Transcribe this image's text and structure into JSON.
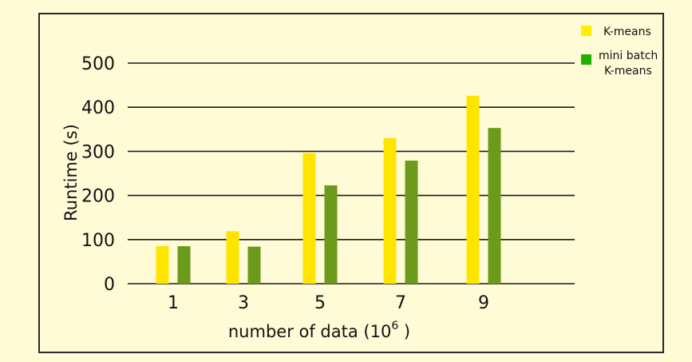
{
  "chart_data": {
    "type": "bar",
    "categories": [
      "1",
      "3",
      "5",
      "7",
      "9"
    ],
    "series": [
      {
        "name": "K-means",
        "values": [
          85,
          119,
          296,
          330,
          426
        ],
        "color": "#ffe400"
      },
      {
        "name": "mini batch K-means",
        "name_lines": [
          "mini batch",
          "K-means"
        ],
        "values": [
          85,
          84,
          223,
          279,
          353
        ],
        "color": "#6c9a1a"
      }
    ],
    "legend_colors": [
      "#ffee00",
      "#22b000"
    ],
    "yticks": [
      0,
      100,
      200,
      300,
      400,
      500
    ],
    "ylim": [
      0,
      500
    ],
    "grid": true,
    "legend_position": "top-right",
    "xlabel": "number of data (10",
    "xlabel_exponent": "6",
    "xlabel_suffix": " )",
    "ylabel": "Runtime (s)"
  },
  "colors": {
    "background": "#fffbd6",
    "frame": "#2a2a2a",
    "grid": "#1a1a1a"
  }
}
